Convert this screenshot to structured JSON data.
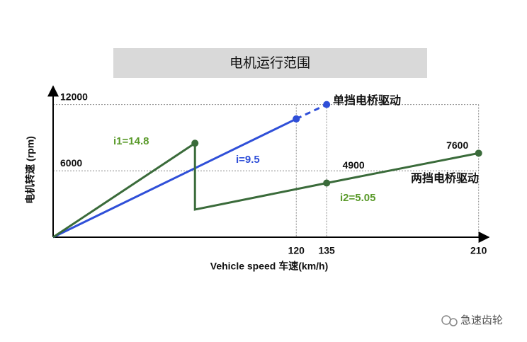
{
  "chart_data": {
    "type": "line",
    "title": "电机运行范围",
    "x_label": "Vehicle speed  车速(km/h)",
    "y_label": "电机转速 (rpm)",
    "xlim": [
      0,
      215
    ],
    "ylim": [
      0,
      13000
    ],
    "xticks": [
      120,
      135,
      210
    ],
    "yticks": [
      6000,
      12000
    ],
    "grid": true,
    "series": [
      {
        "name": "单挡电桥驱动",
        "color": "#2f4fd8",
        "x": [
          0,
          120
        ],
        "values": [
          0,
          10700
        ],
        "style": "solid"
      },
      {
        "color": "#2f4fd8",
        "x": [
          120,
          135
        ],
        "values": [
          10700,
          12000
        ],
        "style": "dashed"
      },
      {
        "name": "两挡电桥驱动",
        "color": "#3a6b3a",
        "x": [
          0,
          70,
          70,
          135,
          210
        ],
        "values": [
          0,
          8500,
          2500,
          4900,
          7600
        ],
        "style": "solid"
      }
    ],
    "annotations": [
      {
        "text": "i1=14.8",
        "color": "#5a9a2a"
      },
      {
        "text": "i=9.5",
        "color": "#2f4fd8"
      },
      {
        "text": "i2=5.05",
        "color": "#5a9a2a"
      }
    ],
    "watermark": "急速齿轮"
  }
}
